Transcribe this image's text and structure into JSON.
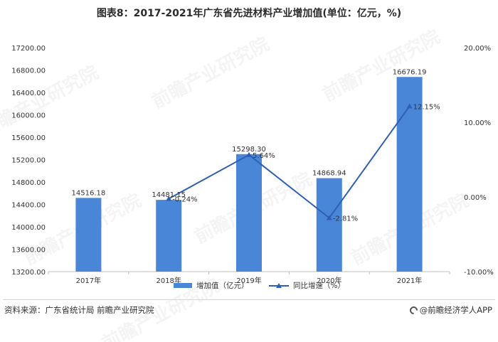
{
  "title": "图表8：2017-2021年广东省先进材料产业增加值(单位：亿元，%)",
  "source": "资料来源：广东省统计局 前瞻产业研究院",
  "brand": "@前瞻经济学人APP",
  "watermark": "前瞻产业研究院",
  "colors": {
    "bar": "#4a86d8",
    "line": "#2e5fb3",
    "axis": "#bfbfbf",
    "text": "#333333"
  },
  "chart_data": {
    "type": "bar",
    "categories": [
      "2017年",
      "2018年",
      "2019年",
      "2020年",
      "2021年"
    ],
    "series": [
      {
        "name": "增加值（亿元）",
        "type": "bar",
        "axis": "left",
        "values": [
          14516.18,
          14481.15,
          15298.3,
          14868.94,
          16676.19
        ],
        "labels": [
          "14516.18",
          "14481.15",
          "15298.30",
          "14868.94",
          "16676.19"
        ]
      },
      {
        "name": "同比增速（%）",
        "type": "line",
        "axis": "right",
        "values": [
          null,
          -0.24,
          5.64,
          -2.81,
          12.15
        ],
        "labels": [
          "",
          "-0.24%",
          "5.64%",
          "-2.81%",
          "12.15%"
        ]
      }
    ],
    "y_left": {
      "min": 13200,
      "max": 17200,
      "ticks": [
        "13200.00",
        "13600.00",
        "14000.00",
        "14400.00",
        "14800.00",
        "15200.00",
        "15600.00",
        "16000.00",
        "16400.00",
        "16800.00",
        "17200.00"
      ]
    },
    "y_right": {
      "min": -10,
      "max": 20,
      "ticks": [
        "-10.00%",
        "0.00%",
        "10.00%",
        "20.00%"
      ]
    },
    "legend": "bottom",
    "grid": false
  }
}
